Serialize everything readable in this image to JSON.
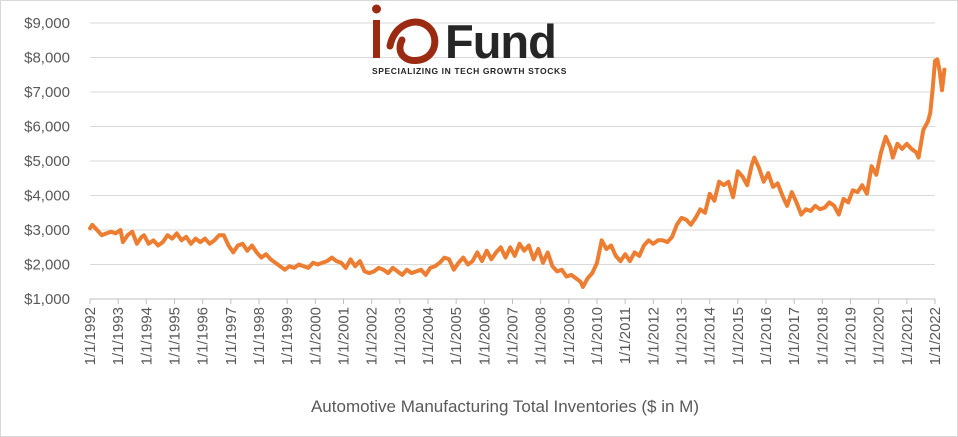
{
  "logo": {
    "name": "ioFund",
    "tagline": "SPECIALIZING IN TECH GROWTH STOCKS",
    "colors": {
      "io": "#9a2b12",
      "fund": "#262626"
    }
  },
  "chart_data": {
    "type": "line",
    "title": "",
    "xlabel": "Automotive Manufacturing Total Inventories ($ in M)",
    "ylabel": "",
    "ylim": [
      1000,
      9000
    ],
    "xlim": [
      "1/1/1992",
      "1/1/2022"
    ],
    "y_ticks": [
      "$1,000",
      "$2,000",
      "$3,000",
      "$4,000",
      "$5,000",
      "$6,000",
      "$7,000",
      "$8,000",
      "$9,000"
    ],
    "x_ticks": [
      "1/1/1992",
      "1/1/1993",
      "1/1/1994",
      "1/1/1995",
      "1/1/1996",
      "1/1/1997",
      "1/1/1998",
      "1/1/1999",
      "1/1/2000",
      "1/1/2001",
      "1/1/2002",
      "1/1/2003",
      "1/1/2004",
      "1/1/2005",
      "1/1/2006",
      "1/1/2007",
      "1/1/2008",
      "1/1/2009",
      "1/1/2010",
      "1/1/2011",
      "1/1/2012",
      "1/1/2013",
      "1/1/2014",
      "1/1/2015",
      "1/1/2016",
      "1/1/2017",
      "1/1/2018",
      "1/1/2019",
      "1/1/2020",
      "1/1/2021",
      "1/1/2022"
    ],
    "grid": true,
    "line_color": "#ed7d31",
    "series": [
      {
        "name": "",
        "points": [
          [
            "1992-01",
            3050
          ],
          [
            "1992-02",
            3150
          ],
          [
            "1992-04",
            3000
          ],
          [
            "1992-06",
            2850
          ],
          [
            "1992-08",
            2900
          ],
          [
            "1992-10",
            2950
          ],
          [
            "1992-12",
            2900
          ],
          [
            "1993-02",
            3000
          ],
          [
            "1993-03",
            2650
          ],
          [
            "1993-05",
            2850
          ],
          [
            "1993-07",
            2950
          ],
          [
            "1993-09",
            2600
          ],
          [
            "1993-11",
            2800
          ],
          [
            "1993-12",
            2850
          ],
          [
            "1994-02",
            2600
          ],
          [
            "1994-04",
            2700
          ],
          [
            "1994-06",
            2550
          ],
          [
            "1994-08",
            2650
          ],
          [
            "1994-10",
            2850
          ],
          [
            "1994-12",
            2750
          ],
          [
            "1995-02",
            2900
          ],
          [
            "1995-04",
            2700
          ],
          [
            "1995-06",
            2800
          ],
          [
            "1995-08",
            2600
          ],
          [
            "1995-10",
            2750
          ],
          [
            "1995-12",
            2650
          ],
          [
            "1996-02",
            2750
          ],
          [
            "1996-04",
            2600
          ],
          [
            "1996-06",
            2700
          ],
          [
            "1996-08",
            2850
          ],
          [
            "1996-10",
            2850
          ],
          [
            "1996-12",
            2550
          ],
          [
            "1997-02",
            2350
          ],
          [
            "1997-04",
            2550
          ],
          [
            "1997-06",
            2600
          ],
          [
            "1997-08",
            2400
          ],
          [
            "1997-10",
            2550
          ],
          [
            "1997-12",
            2350
          ],
          [
            "1998-02",
            2200
          ],
          [
            "1998-04",
            2300
          ],
          [
            "1998-06",
            2150
          ],
          [
            "1998-08",
            2050
          ],
          [
            "1998-10",
            1950
          ],
          [
            "1998-12",
            1850
          ],
          [
            "1999-02",
            1950
          ],
          [
            "1999-04",
            1900
          ],
          [
            "1999-06",
            2000
          ],
          [
            "1999-08",
            1950
          ],
          [
            "1999-10",
            1900
          ],
          [
            "1999-12",
            2050
          ],
          [
            "2000-02",
            2000
          ],
          [
            "2000-04",
            2050
          ],
          [
            "2000-06",
            2100
          ],
          [
            "2000-08",
            2200
          ],
          [
            "2000-10",
            2100
          ],
          [
            "2000-12",
            2050
          ],
          [
            "2001-02",
            1900
          ],
          [
            "2001-04",
            2150
          ],
          [
            "2001-06",
            1950
          ],
          [
            "2001-08",
            2100
          ],
          [
            "2001-10",
            1800
          ],
          [
            "2001-12",
            1750
          ],
          [
            "2002-02",
            1800
          ],
          [
            "2002-04",
            1900
          ],
          [
            "2002-06",
            1850
          ],
          [
            "2002-08",
            1750
          ],
          [
            "2002-10",
            1900
          ],
          [
            "2002-12",
            1800
          ],
          [
            "2003-02",
            1700
          ],
          [
            "2003-04",
            1850
          ],
          [
            "2003-06",
            1750
          ],
          [
            "2003-08",
            1800
          ],
          [
            "2003-10",
            1850
          ],
          [
            "2003-12",
            1700
          ],
          [
            "2004-02",
            1900
          ],
          [
            "2004-04",
            1950
          ],
          [
            "2004-06",
            2050
          ],
          [
            "2004-08",
            2200
          ],
          [
            "2004-10",
            2150
          ],
          [
            "2004-12",
            1850
          ],
          [
            "2005-02",
            2050
          ],
          [
            "2005-04",
            2200
          ],
          [
            "2005-06",
            2000
          ],
          [
            "2005-08",
            2100
          ],
          [
            "2005-10",
            2350
          ],
          [
            "2005-12",
            2100
          ],
          [
            "2006-02",
            2400
          ],
          [
            "2006-04",
            2150
          ],
          [
            "2006-06",
            2350
          ],
          [
            "2006-08",
            2500
          ],
          [
            "2006-10",
            2200
          ],
          [
            "2006-12",
            2500
          ],
          [
            "2007-02",
            2250
          ],
          [
            "2007-04",
            2600
          ],
          [
            "2007-06",
            2400
          ],
          [
            "2007-08",
            2550
          ],
          [
            "2007-10",
            2150
          ],
          [
            "2007-12",
            2450
          ],
          [
            "2008-02",
            2050
          ],
          [
            "2008-04",
            2350
          ],
          [
            "2008-06",
            1950
          ],
          [
            "2008-08",
            1800
          ],
          [
            "2008-10",
            1850
          ],
          [
            "2008-12",
            1650
          ],
          [
            "2009-02",
            1700
          ],
          [
            "2009-04",
            1600
          ],
          [
            "2009-06",
            1500
          ],
          [
            "2009-07",
            1350
          ],
          [
            "2009-09",
            1600
          ],
          [
            "2009-11",
            1750
          ],
          [
            "2010-01",
            2050
          ],
          [
            "2010-03",
            2700
          ],
          [
            "2010-05",
            2450
          ],
          [
            "2010-07",
            2550
          ],
          [
            "2010-09",
            2250
          ],
          [
            "2010-11",
            2100
          ],
          [
            "2011-01",
            2300
          ],
          [
            "2011-03",
            2100
          ],
          [
            "2011-05",
            2350
          ],
          [
            "2011-07",
            2250
          ],
          [
            "2011-09",
            2550
          ],
          [
            "2011-11",
            2700
          ],
          [
            "2012-01",
            2600
          ],
          [
            "2012-03",
            2700
          ],
          [
            "2012-05",
            2700
          ],
          [
            "2012-07",
            2650
          ],
          [
            "2012-09",
            2800
          ],
          [
            "2012-11",
            3150
          ],
          [
            "2013-01",
            3350
          ],
          [
            "2013-03",
            3300
          ],
          [
            "2013-05",
            3150
          ],
          [
            "2013-07",
            3350
          ],
          [
            "2013-09",
            3600
          ],
          [
            "2013-11",
            3500
          ],
          [
            "2014-01",
            4050
          ],
          [
            "2014-03",
            3850
          ],
          [
            "2014-05",
            4400
          ],
          [
            "2014-07",
            4300
          ],
          [
            "2014-09",
            4400
          ],
          [
            "2014-11",
            3950
          ],
          [
            "2015-01",
            4700
          ],
          [
            "2015-03",
            4550
          ],
          [
            "2015-05",
            4300
          ],
          [
            "2015-07",
            4900
          ],
          [
            "2015-08",
            5100
          ],
          [
            "2015-10",
            4800
          ],
          [
            "2015-12",
            4400
          ],
          [
            "2016-02",
            4650
          ],
          [
            "2016-04",
            4250
          ],
          [
            "2016-06",
            4350
          ],
          [
            "2016-08",
            4000
          ],
          [
            "2016-10",
            3700
          ],
          [
            "2016-12",
            4100
          ],
          [
            "2017-02",
            3800
          ],
          [
            "2017-04",
            3450
          ],
          [
            "2017-06",
            3600
          ],
          [
            "2017-08",
            3550
          ],
          [
            "2017-10",
            3700
          ],
          [
            "2017-12",
            3600
          ],
          [
            "2018-02",
            3650
          ],
          [
            "2018-04",
            3800
          ],
          [
            "2018-06",
            3700
          ],
          [
            "2018-08",
            3450
          ],
          [
            "2018-10",
            3900
          ],
          [
            "2018-12",
            3800
          ],
          [
            "2019-02",
            4150
          ],
          [
            "2019-04",
            4100
          ],
          [
            "2019-06",
            4300
          ],
          [
            "2019-08",
            4050
          ],
          [
            "2019-10",
            4850
          ],
          [
            "2019-12",
            4600
          ],
          [
            "2020-02",
            5250
          ],
          [
            "2020-04",
            5700
          ],
          [
            "2020-06",
            5400
          ],
          [
            "2020-07",
            5100
          ],
          [
            "2020-09",
            5500
          ],
          [
            "2020-11",
            5350
          ],
          [
            "2021-01",
            5500
          ],
          [
            "2021-03",
            5350
          ],
          [
            "2021-05",
            5250
          ],
          [
            "2021-06",
            5100
          ],
          [
            "2021-08",
            5900
          ],
          [
            "2021-10",
            6150
          ],
          [
            "2021-11",
            6400
          ],
          [
            "2021-12",
            7100
          ],
          [
            "2022-01",
            7900
          ],
          [
            "2022-02",
            7950
          ],
          [
            "2022-03",
            7600
          ],
          [
            "2022-04",
            7050
          ],
          [
            "2022-05",
            7650
          ]
        ]
      }
    ]
  }
}
